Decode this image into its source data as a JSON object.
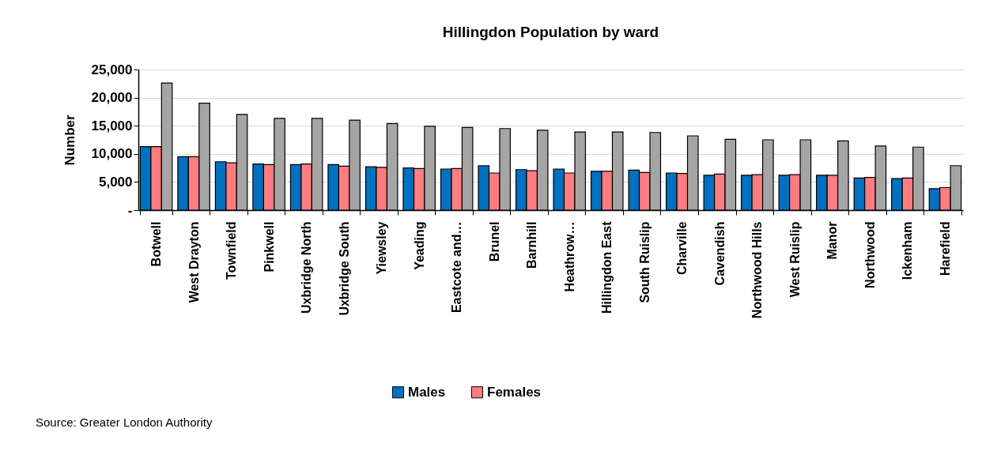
{
  "chart_data": {
    "type": "bar",
    "title": "Hillingdon Population by ward",
    "ylabel": "Number",
    "categories": [
      "Botwell",
      "West Drayton",
      "Townfield",
      "Pinkwell",
      "Uxbridge North",
      "Uxbridge South",
      "Yiewsley",
      "Yeading",
      "Eastcote and…",
      "Brunel",
      "Barnhill",
      "Heathrow…",
      "Hillingdon East",
      "South Ruislip",
      "Charville",
      "Cavendish",
      "Northwood Hills",
      "West Ruislip",
      "Manor",
      "Northwood",
      "Ickenham",
      "Harefield"
    ],
    "series": [
      {
        "name": "Males",
        "color": "#0070c0",
        "values": [
          11300,
          9500,
          8600,
          8200,
          8100,
          8100,
          7700,
          7500,
          7300,
          7900,
          7200,
          7300,
          6900,
          7100,
          6600,
          6200,
          6200,
          6200,
          6200,
          5700,
          5600,
          3800
        ]
      },
      {
        "name": "Females",
        "color": "#ff7c80",
        "values": [
          11300,
          9500,
          8400,
          8100,
          8200,
          7800,
          7600,
          7400,
          7400,
          6600,
          7000,
          6600,
          6900,
          6700,
          6500,
          6400,
          6300,
          6300,
          6200,
          5800,
          5700,
          4000
        ]
      },
      {
        "color": "#a5a5a5",
        "values": [
          22600,
          19000,
          17000,
          16300,
          16300,
          16000,
          15400,
          14900,
          14700,
          14500,
          14200,
          13900,
          13900,
          13800,
          13200,
          12600,
          12500,
          12500,
          12300,
          11400,
          11200,
          7900
        ]
      }
    ],
    "ylim": [
      0,
      25000
    ],
    "yticks": [
      {
        "value": 0,
        "label": "-"
      },
      {
        "value": 5000,
        "label": "5,000"
      },
      {
        "value": 10000,
        "label": "10,000"
      },
      {
        "value": 15000,
        "label": "15,000"
      },
      {
        "value": 20000,
        "label": "20,000"
      },
      {
        "value": 25000,
        "label": "25,000"
      }
    ],
    "grid": "y",
    "legend": "bottom",
    "annotations": [
      "Source: Greater London Authority"
    ]
  }
}
